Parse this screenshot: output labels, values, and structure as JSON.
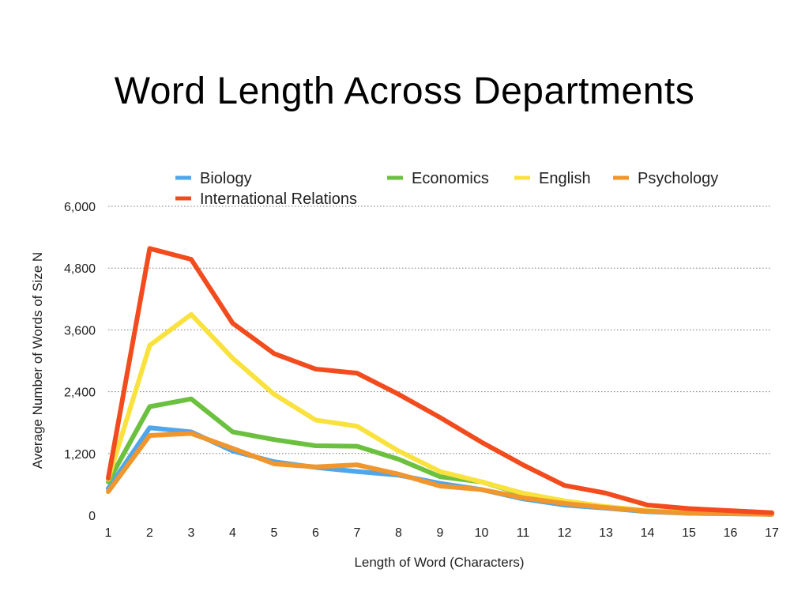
{
  "chart_data": {
    "type": "line",
    "title": "Word Length Across Departments",
    "xlabel": "Length of Word (Characters)",
    "ylabel": "Average Number of Words of Size N",
    "x": [
      1,
      2,
      3,
      4,
      5,
      6,
      7,
      8,
      9,
      10,
      11,
      12,
      13,
      14,
      15,
      16,
      17
    ],
    "x_tick_labels": [
      "1",
      "2",
      "3",
      "4",
      "5",
      "6",
      "7",
      "8",
      "9",
      "10",
      "11",
      "12",
      "13",
      "14",
      "15",
      "16",
      "17"
    ],
    "xlim": [
      1,
      17
    ],
    "ylim": [
      0,
      6000
    ],
    "y_ticks": [
      0,
      1200,
      2400,
      3600,
      4800,
      6000
    ],
    "y_tick_labels": [
      "0",
      "1,200",
      "2,400",
      "3,600",
      "4,800",
      "6,000"
    ],
    "grid": true,
    "legend_position": "top",
    "series": [
      {
        "name": "Biology",
        "color": "#4EA6EC",
        "values": [
          520,
          1700,
          1620,
          1250,
          1040,
          930,
          850,
          780,
          620,
          500,
          320,
          200,
          140,
          70,
          40,
          30,
          20
        ]
      },
      {
        "name": "Economics",
        "color": "#6CC03F",
        "values": [
          650,
          2110,
          2260,
          1620,
          1470,
          1350,
          1340,
          1090,
          750,
          650,
          410,
          270,
          160,
          80,
          50,
          40,
          30
        ]
      },
      {
        "name": "English",
        "color": "#F9E23D",
        "values": [
          700,
          3300,
          3900,
          3050,
          2350,
          1850,
          1730,
          1250,
          850,
          650,
          430,
          280,
          170,
          90,
          60,
          40,
          30
        ]
      },
      {
        "name": "Psychology",
        "color": "#F0962C",
        "values": [
          460,
          1550,
          1590,
          1300,
          1000,
          940,
          980,
          800,
          570,
          500,
          340,
          230,
          150,
          80,
          40,
          30,
          20
        ]
      },
      {
        "name": "International Relations",
        "color": "#F24C1E",
        "values": [
          720,
          5180,
          4970,
          3730,
          3140,
          2840,
          2760,
          2350,
          1900,
          1420,
          980,
          580,
          430,
          200,
          130,
          90,
          50
        ]
      }
    ]
  }
}
